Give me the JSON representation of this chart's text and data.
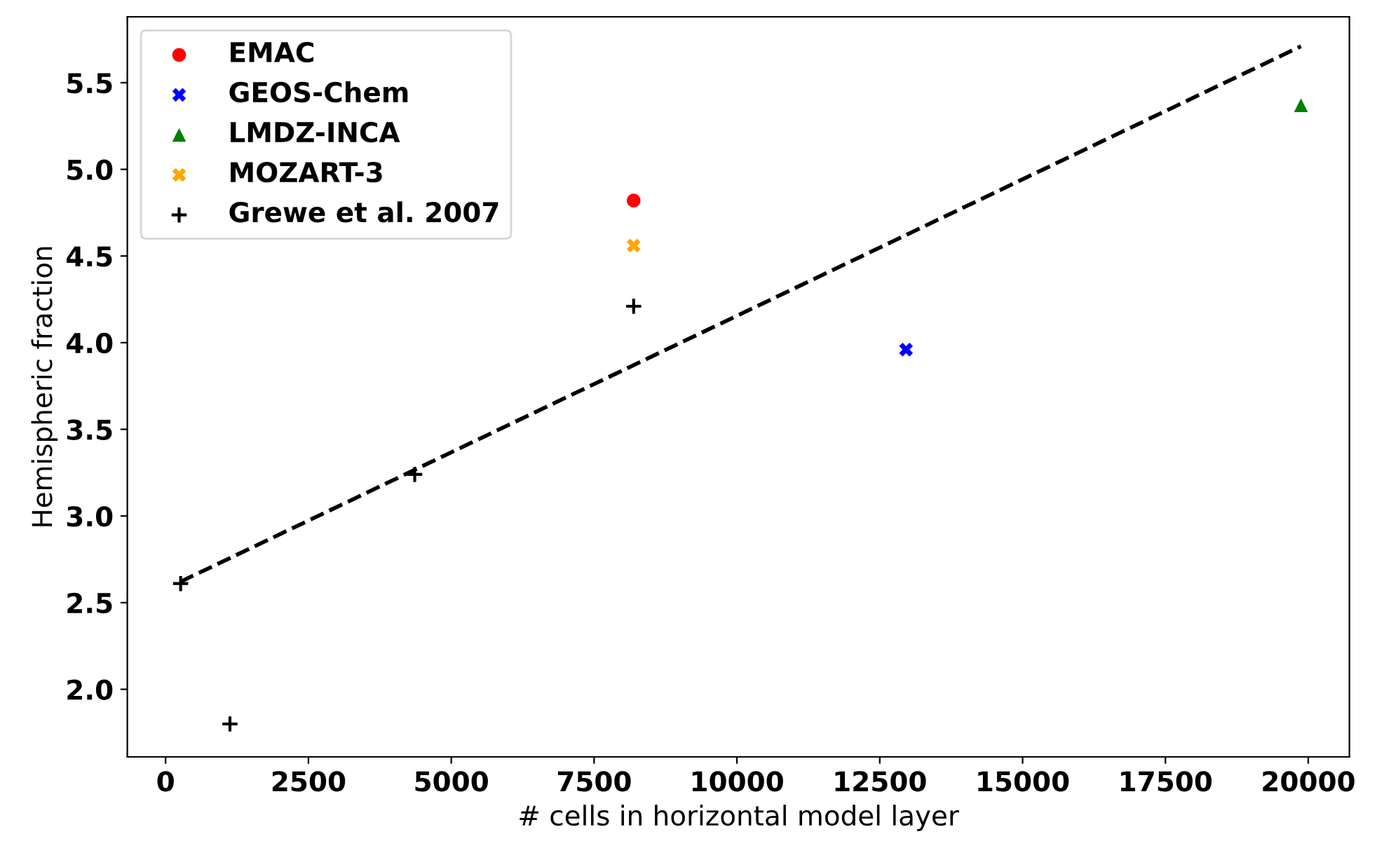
{
  "chart_data": {
    "type": "scatter",
    "xlabel": "# cells in horizontal model layer",
    "ylabel": "Hemispheric fraction",
    "xlim": [
      -670,
      20720
    ],
    "ylim": [
      1.61,
      5.88
    ],
    "xticks": [
      0,
      2500,
      5000,
      7500,
      10000,
      12500,
      15000,
      17500,
      20000
    ],
    "yticks": [
      {
        "value": 2.0,
        "label": "2.0"
      },
      {
        "value": 2.5,
        "label": "2.5"
      },
      {
        "value": 3.0,
        "label": "3.0"
      },
      {
        "value": 3.5,
        "label": "3.5"
      },
      {
        "value": 4.0,
        "label": "4.0"
      },
      {
        "value": 4.5,
        "label": "4.5"
      },
      {
        "value": 5.0,
        "label": "5.0"
      },
      {
        "value": 5.5,
        "label": "5.5"
      }
    ],
    "grid": false,
    "legend": "top left",
    "series": [
      {
        "name": "EMAC",
        "color": "#ff0000",
        "marker": "circle",
        "x": [
          8192
        ],
        "values": [
          4.82
        ]
      },
      {
        "name": "GEOS-Chem",
        "color": "#0000ff",
        "marker": "cross",
        "x": [
          12960
        ],
        "values": [
          3.96
        ]
      },
      {
        "name": "LMDZ-INCA",
        "color": "#008000",
        "marker": "triangle",
        "x": [
          19872
        ],
        "values": [
          5.37
        ]
      },
      {
        "name": "MOZART-3",
        "color": "#ffa500",
        "marker": "cross",
        "x": [
          8192
        ],
        "values": [
          4.56
        ]
      },
      {
        "name": "Grewe et al. 2007",
        "color": "#000000",
        "marker": "plus",
        "x": [
          263,
          1126,
          4360,
          8192
        ],
        "values": [
          2.61,
          1.8,
          3.24,
          4.21
        ]
      },
      {
        "type": "line",
        "color": "#000000",
        "line_style": "dashed",
        "marker": "none",
        "x": [
          256,
          19872
        ],
        "values": [
          2.62,
          5.71
        ]
      }
    ]
  }
}
